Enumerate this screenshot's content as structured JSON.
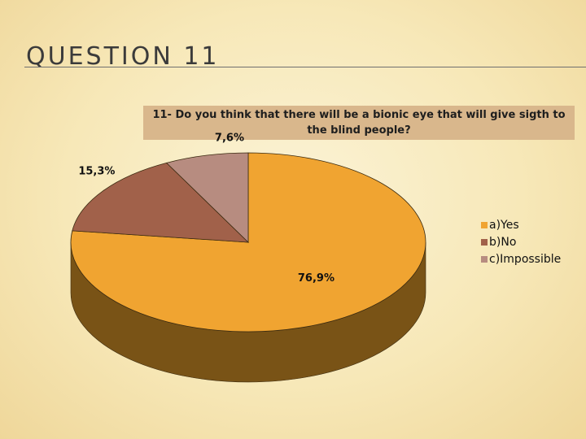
{
  "slide": {
    "title": "QUESTION 11"
  },
  "chart_data": {
    "type": "pie",
    "title": "11- Do you think that there will be a bionic eye that will give sigth to the blind people?",
    "title_lines": [
      "11- Do you think that there will be a bionic eye that will give sigth to",
      "the blind people?"
    ],
    "slices": [
      {
        "label": "a)Yes",
        "value": 76.9,
        "display": "76,9%",
        "color": "#f0a431",
        "side_color": "#795316"
      },
      {
        "label": "b)No",
        "value": 15.3,
        "display": "15,3%",
        "color": "#a1614a",
        "side_color": "#5a3526"
      },
      {
        "label": "c)Impossible",
        "value": 7.6,
        "display": "7,6%",
        "color": "#b78c80",
        "side_color": "#6d524b"
      }
    ],
    "style": "3d",
    "legend_position": "right"
  }
}
